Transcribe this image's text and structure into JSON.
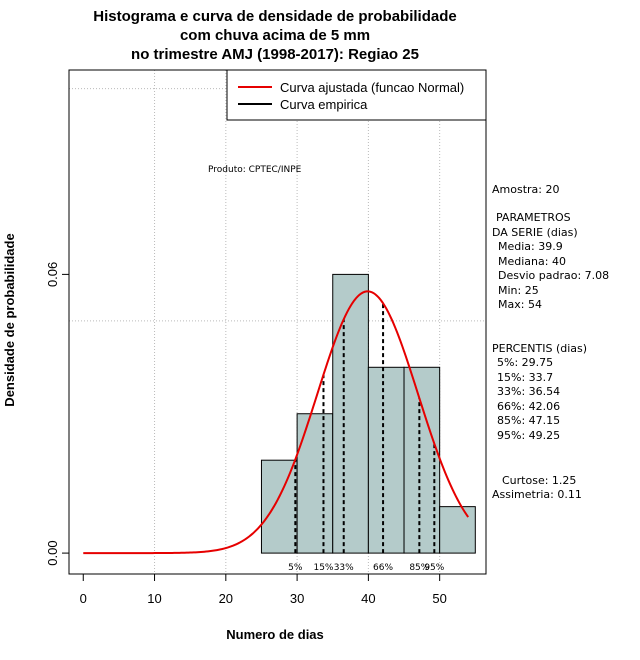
{
  "chart_data": {
    "type": "bar",
    "title": [
      "Histograma e curva de densidade de probabilidade",
      "com chuva acima de 5 mm",
      "no trimestre AMJ (1998-2017): Regiao 25"
    ],
    "xlabel": "Numero de dias",
    "ylabel": "Densidade de probabilidade",
    "xlim": [
      -2,
      56.5
    ],
    "ylim": [
      -0.0045,
      0.104
    ],
    "x_ticks": [
      0,
      10,
      20,
      30,
      40,
      50
    ],
    "x_tick_labels": [
      "0",
      "10",
      "20",
      "30",
      "40",
      "50"
    ],
    "y_ticks": [
      0.0,
      0.06
    ],
    "y_tick_labels": [
      "0.00",
      "0.06"
    ],
    "grid_x": [
      10,
      20,
      30,
      40,
      50
    ],
    "grid_y": [
      0.05,
      0.1
    ],
    "bars": [
      {
        "x0": 25,
        "x1": 30,
        "value": 0.02
      },
      {
        "x0": 30,
        "x1": 35,
        "value": 0.03
      },
      {
        "x0": 35,
        "x1": 40,
        "value": 0.06
      },
      {
        "x0": 40,
        "x1": 45,
        "value": 0.04
      },
      {
        "x0": 45,
        "x1": 50,
        "value": 0.04
      },
      {
        "x0": 50,
        "x1": 55,
        "value": 0.01
      }
    ],
    "normal_fit": {
      "mean": 39.9,
      "sd": 7.08,
      "x_from": 0,
      "x_to": 54
    },
    "percentile_lines": [
      {
        "label": "5%",
        "value": 29.75
      },
      {
        "label": "15%",
        "value": 33.7
      },
      {
        "label": "33%",
        "value": 36.54
      },
      {
        "label": "66%",
        "value": 42.06
      },
      {
        "label": "85%",
        "value": 47.15
      },
      {
        "label": "95%",
        "value": 49.25
      }
    ],
    "legend": {
      "position": "top-right",
      "entries": [
        {
          "label": "Curva ajustada (funcao Normal)",
          "color": "#e60000"
        },
        {
          "label": "Curva empirica",
          "color": "#000000"
        }
      ]
    },
    "colors": {
      "bar_fill": "#b4cbca",
      "fit_line": "#e60000",
      "grid": "#bbbbbb"
    },
    "annotation": "Produto: CPTEC/INPE"
  },
  "side_panel": {
    "sample": "Amostra: 20",
    "params_header": [
      "PARAMETROS",
      "DA SERIE (dias)"
    ],
    "params": [
      "Media: 39.9",
      "Mediana: 40",
      "Desvio padrao: 7.08",
      "Min: 25",
      "Max: 54"
    ],
    "percentis_header": "PERCENTIS (dias)",
    "percentis": [
      "5%: 29.75",
      "15%: 33.7",
      "33%: 36.54",
      "66%: 42.06",
      "85%: 47.15",
      "95%: 49.25"
    ],
    "curtose": "Curtose: 1.25",
    "assimetria": "Assimetria: 0.11"
  }
}
